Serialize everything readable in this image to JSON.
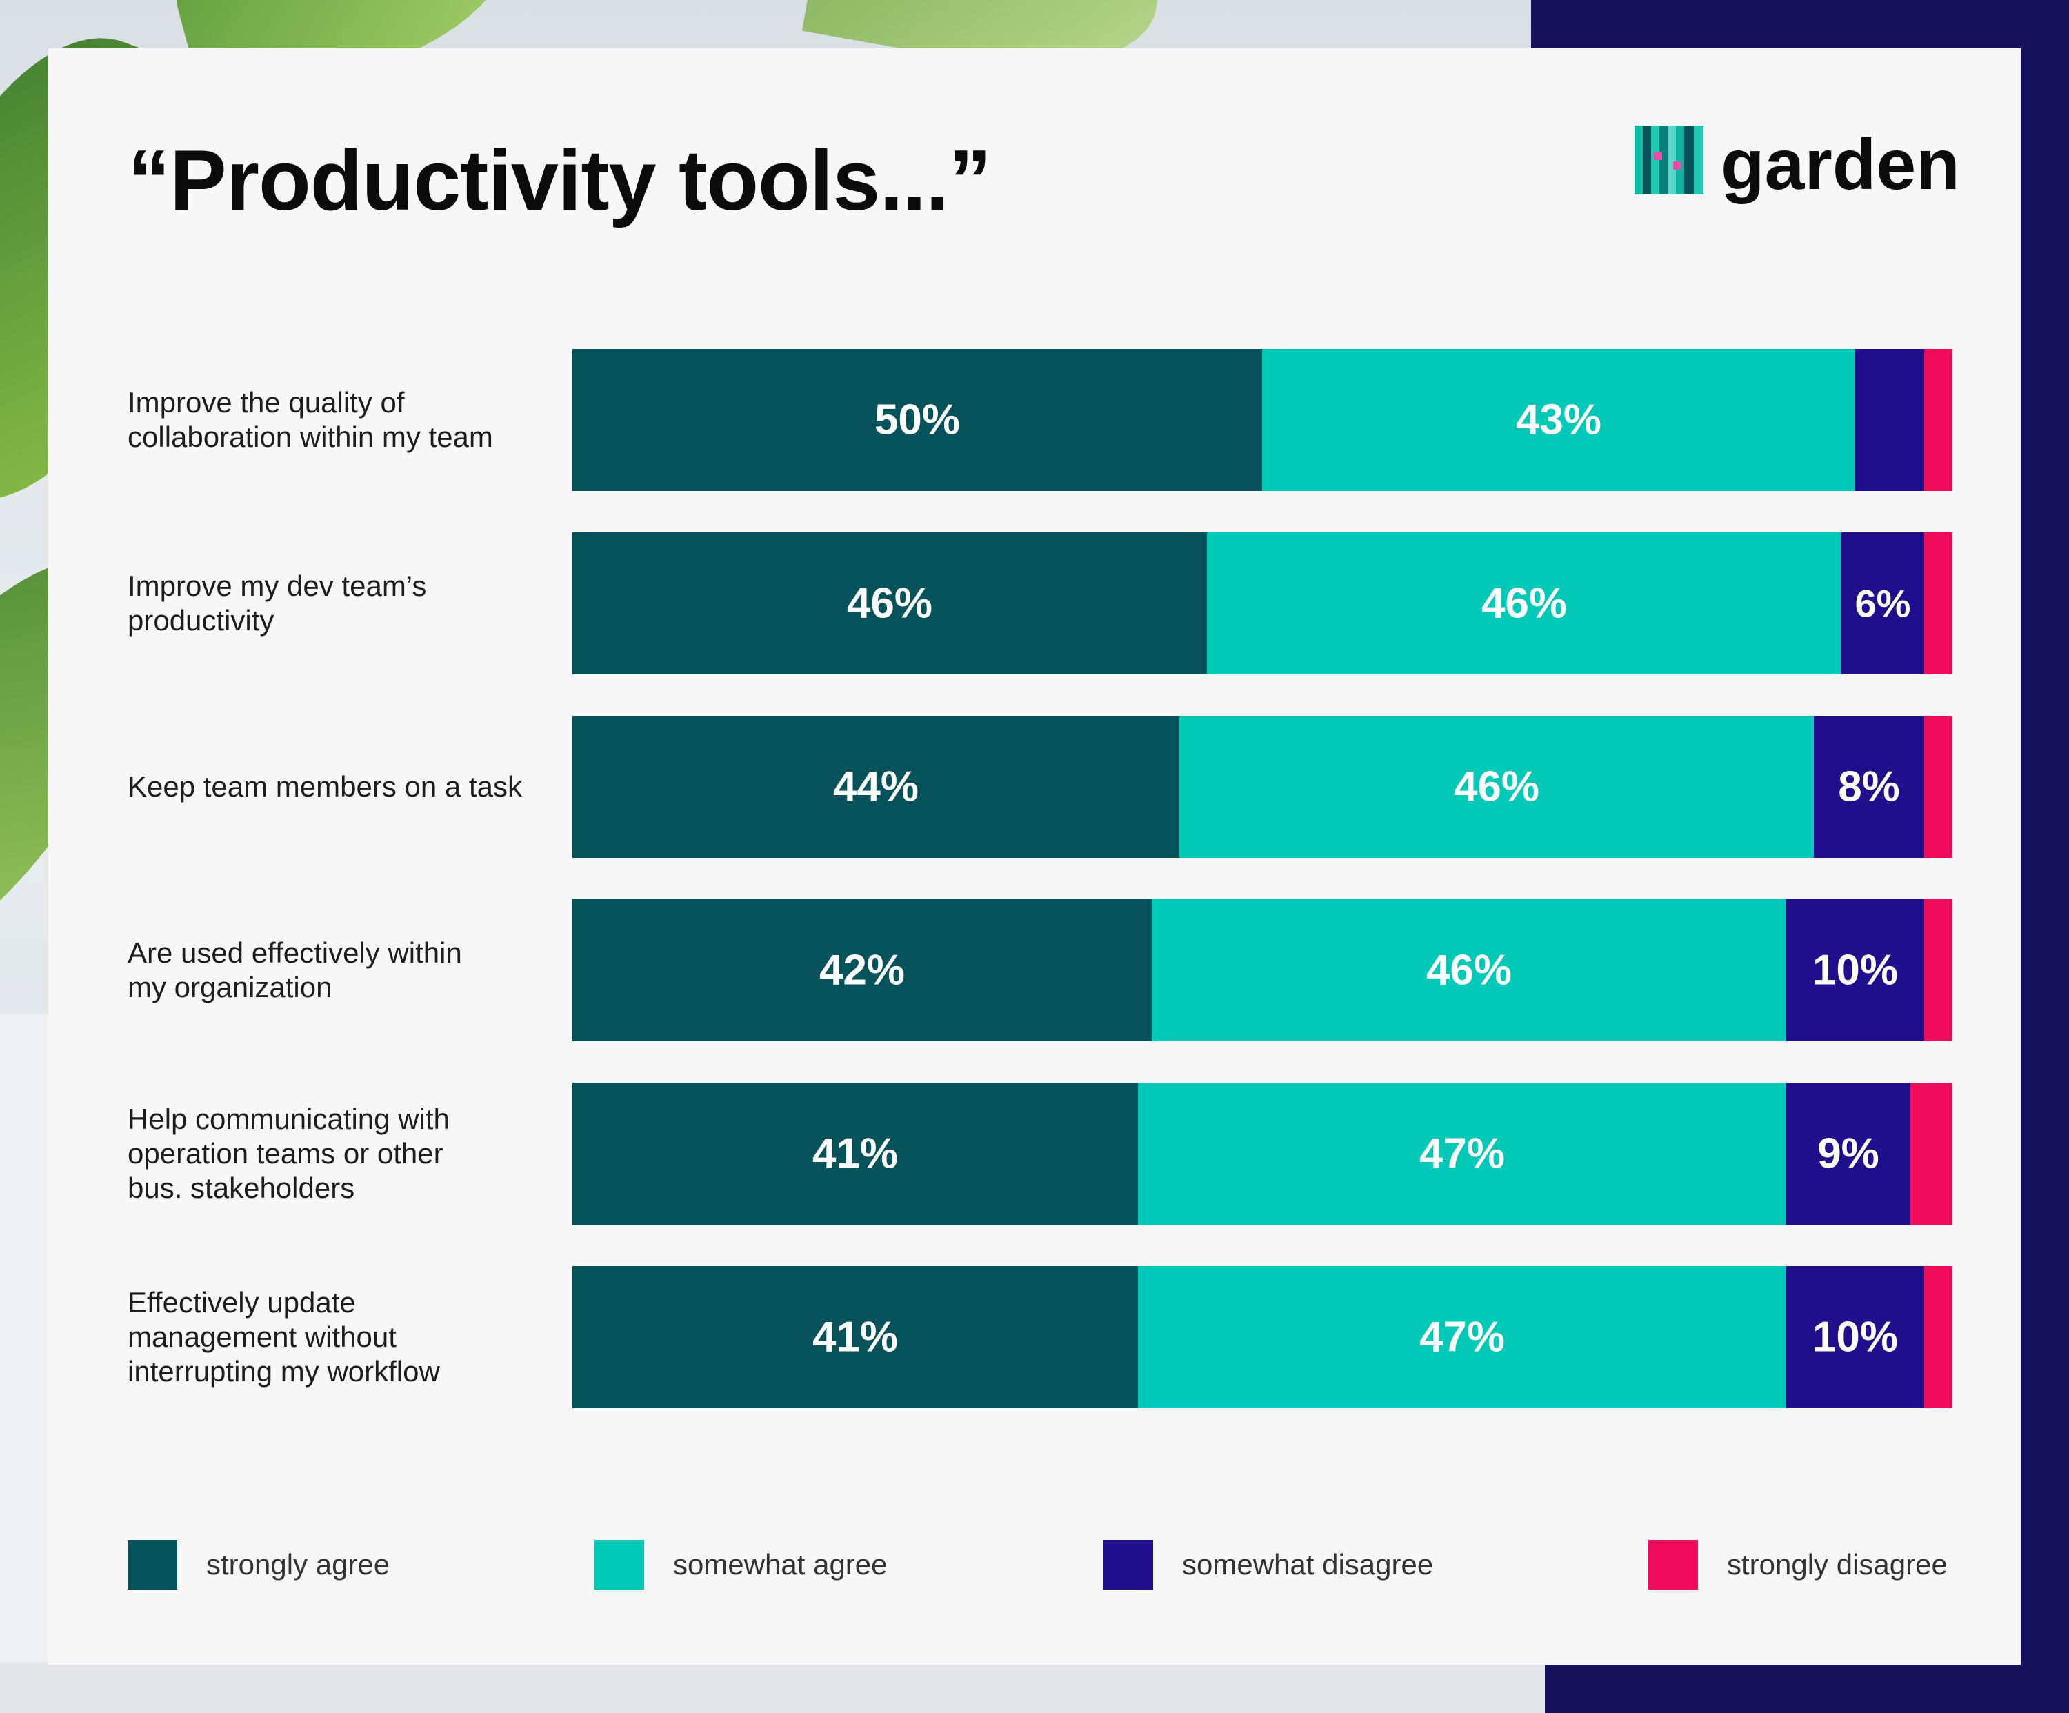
{
  "title": "“Productivity tools...”",
  "logo": {
    "text": "garden",
    "icon": "garden-logo-icon"
  },
  "colors": {
    "strongly_agree": "#05525a",
    "somewhat_agree": "#00c9b7",
    "somewhat_disagree": "#1f0f8c",
    "strongly_disagree": "#f00a5a"
  },
  "rows": [
    {
      "label_lines": [
        "Improve the quality of",
        "collaboration within my team"
      ]
    },
    {
      "label_lines": [
        "Improve my dev team’s",
        "productivity"
      ]
    },
    {
      "label_lines": [
        "Keep team members on a task"
      ]
    },
    {
      "label_lines": [
        "Are used effectively within",
        "my organization"
      ]
    },
    {
      "label_lines": [
        "Help communicating with",
        "operation teams or other",
        "bus. stakeholders"
      ]
    },
    {
      "label_lines": [
        "Effectively update",
        "management without",
        "interrupting my workflow"
      ]
    }
  ],
  "legend": [
    {
      "label": "strongly agree"
    },
    {
      "label": "somewhat agree"
    },
    {
      "label": "somewhat disagree"
    },
    {
      "label": "strongly disagree"
    }
  ],
  "chart_data": {
    "type": "bar",
    "orientation": "horizontal",
    "stacked": true,
    "categories": [
      "Improve the quality of collaboration within my team",
      "Improve my dev team’s productivity",
      "Keep team members on a task",
      "Are used effectively within my organization",
      "Help communicating with operation teams or other bus. stakeholders",
      "Effectively update management without interrupting my workflow"
    ],
    "series": [
      {
        "name": "strongly agree",
        "values": [
          50,
          46,
          44,
          42,
          41,
          41
        ],
        "labels": [
          "50%",
          "46%",
          "44%",
          "42%",
          "41%",
          "41%"
        ]
      },
      {
        "name": "somewhat agree",
        "values": [
          43,
          46,
          46,
          46,
          47,
          47
        ],
        "labels": [
          "43%",
          "46%",
          "46%",
          "46%",
          "47%",
          "47%"
        ]
      },
      {
        "name": "somewhat disagree",
        "values": [
          5,
          6,
          8,
          10,
          9,
          10
        ],
        "labels": [
          "",
          "6%",
          "8%",
          "10%",
          "9%",
          "10%"
        ]
      },
      {
        "name": "strongly disagree",
        "values": [
          2,
          2,
          2,
          2,
          3,
          2
        ],
        "labels": [
          "",
          "",
          "",
          "",
          "",
          ""
        ]
      }
    ],
    "xlim": [
      0,
      100
    ],
    "grid": false,
    "legend_position": "bottom"
  }
}
